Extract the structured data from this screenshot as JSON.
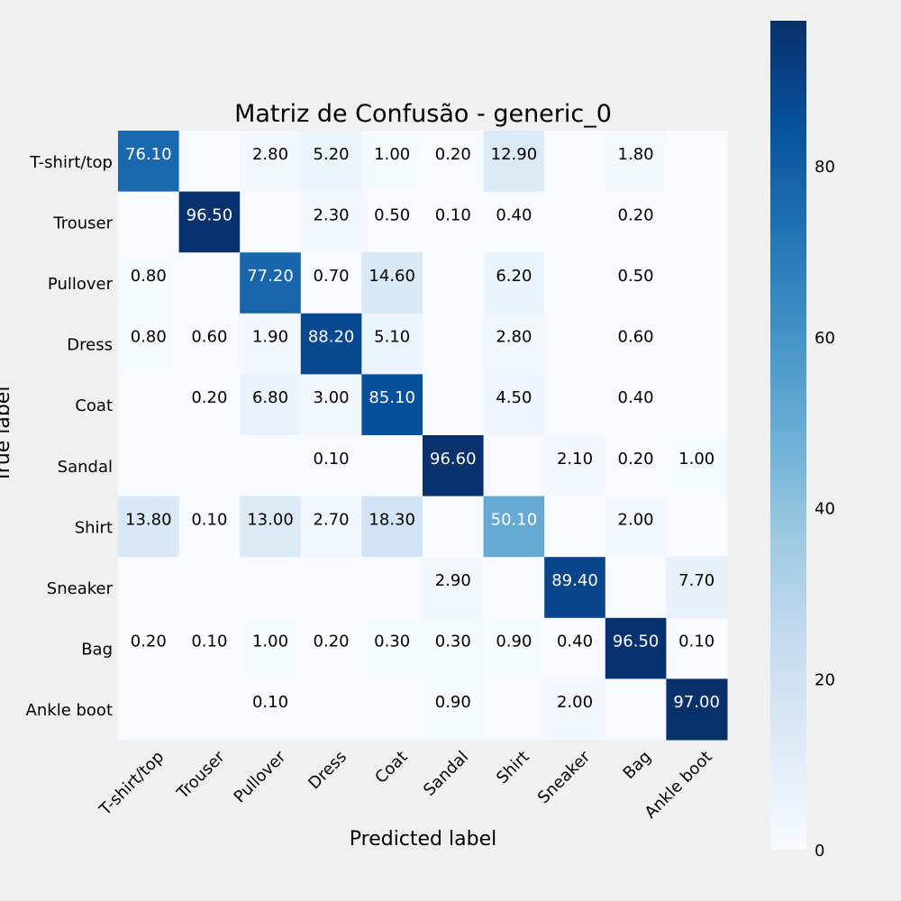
{
  "chart_data": {
    "type": "heatmap",
    "title": "Matriz de Confusão - generic_0",
    "xlabel": "Predicted label",
    "ylabel": "True label",
    "x_categories": [
      "T-shirt/top",
      "Trouser",
      "Pullover",
      "Dress",
      "Coat",
      "Sandal",
      "Shirt",
      "Sneaker",
      "Bag",
      "Ankle boot"
    ],
    "y_categories": [
      "T-shirt/top",
      "Trouser",
      "Pullover",
      "Dress",
      "Coat",
      "Sandal",
      "Shirt",
      "Sneaker",
      "Bag",
      "Ankle boot"
    ],
    "values": [
      [
        76.1,
        0,
        2.8,
        5.2,
        1.0,
        0.2,
        12.9,
        0,
        1.8,
        0
      ],
      [
        0,
        96.5,
        0,
        2.3,
        0.5,
        0.1,
        0.4,
        0,
        0.2,
        0
      ],
      [
        0.8,
        0,
        77.2,
        0.7,
        14.6,
        0,
        6.2,
        0,
        0.5,
        0
      ],
      [
        0.8,
        0.6,
        1.9,
        88.2,
        5.1,
        0,
        2.8,
        0,
        0.6,
        0
      ],
      [
        0,
        0.2,
        6.8,
        3.0,
        85.1,
        0,
        4.5,
        0,
        0.4,
        0
      ],
      [
        0,
        0,
        0,
        0.1,
        0,
        96.6,
        0,
        2.1,
        0.2,
        1.0
      ],
      [
        13.8,
        0.1,
        13.0,
        2.7,
        18.3,
        0,
        50.1,
        0,
        2.0,
        0
      ],
      [
        0,
        0,
        0,
        0,
        0,
        2.9,
        0,
        89.4,
        0,
        7.7
      ],
      [
        0.2,
        0.1,
        1.0,
        0.2,
        0.3,
        0.3,
        0.9,
        0.4,
        96.5,
        0.1
      ],
      [
        0,
        0,
        0.1,
        0,
        0,
        0.9,
        0,
        2.0,
        0,
        97.0
      ]
    ],
    "value_format_decimals": 2,
    "hide_zero_labels": true,
    "colormap": "Blues",
    "colorbar": {
      "range": [
        0,
        97.0
      ],
      "ticks": [
        0,
        20,
        40,
        60,
        80
      ],
      "tick_labels": [
        "0",
        "20",
        "40",
        "60",
        "80"
      ]
    },
    "grid": false,
    "colors": {
      "low": "#f7fbff",
      "high": "#08306b",
      "text_dark": "#000000",
      "text_light": "#ffffff",
      "background": "#f0f0f0"
    }
  }
}
